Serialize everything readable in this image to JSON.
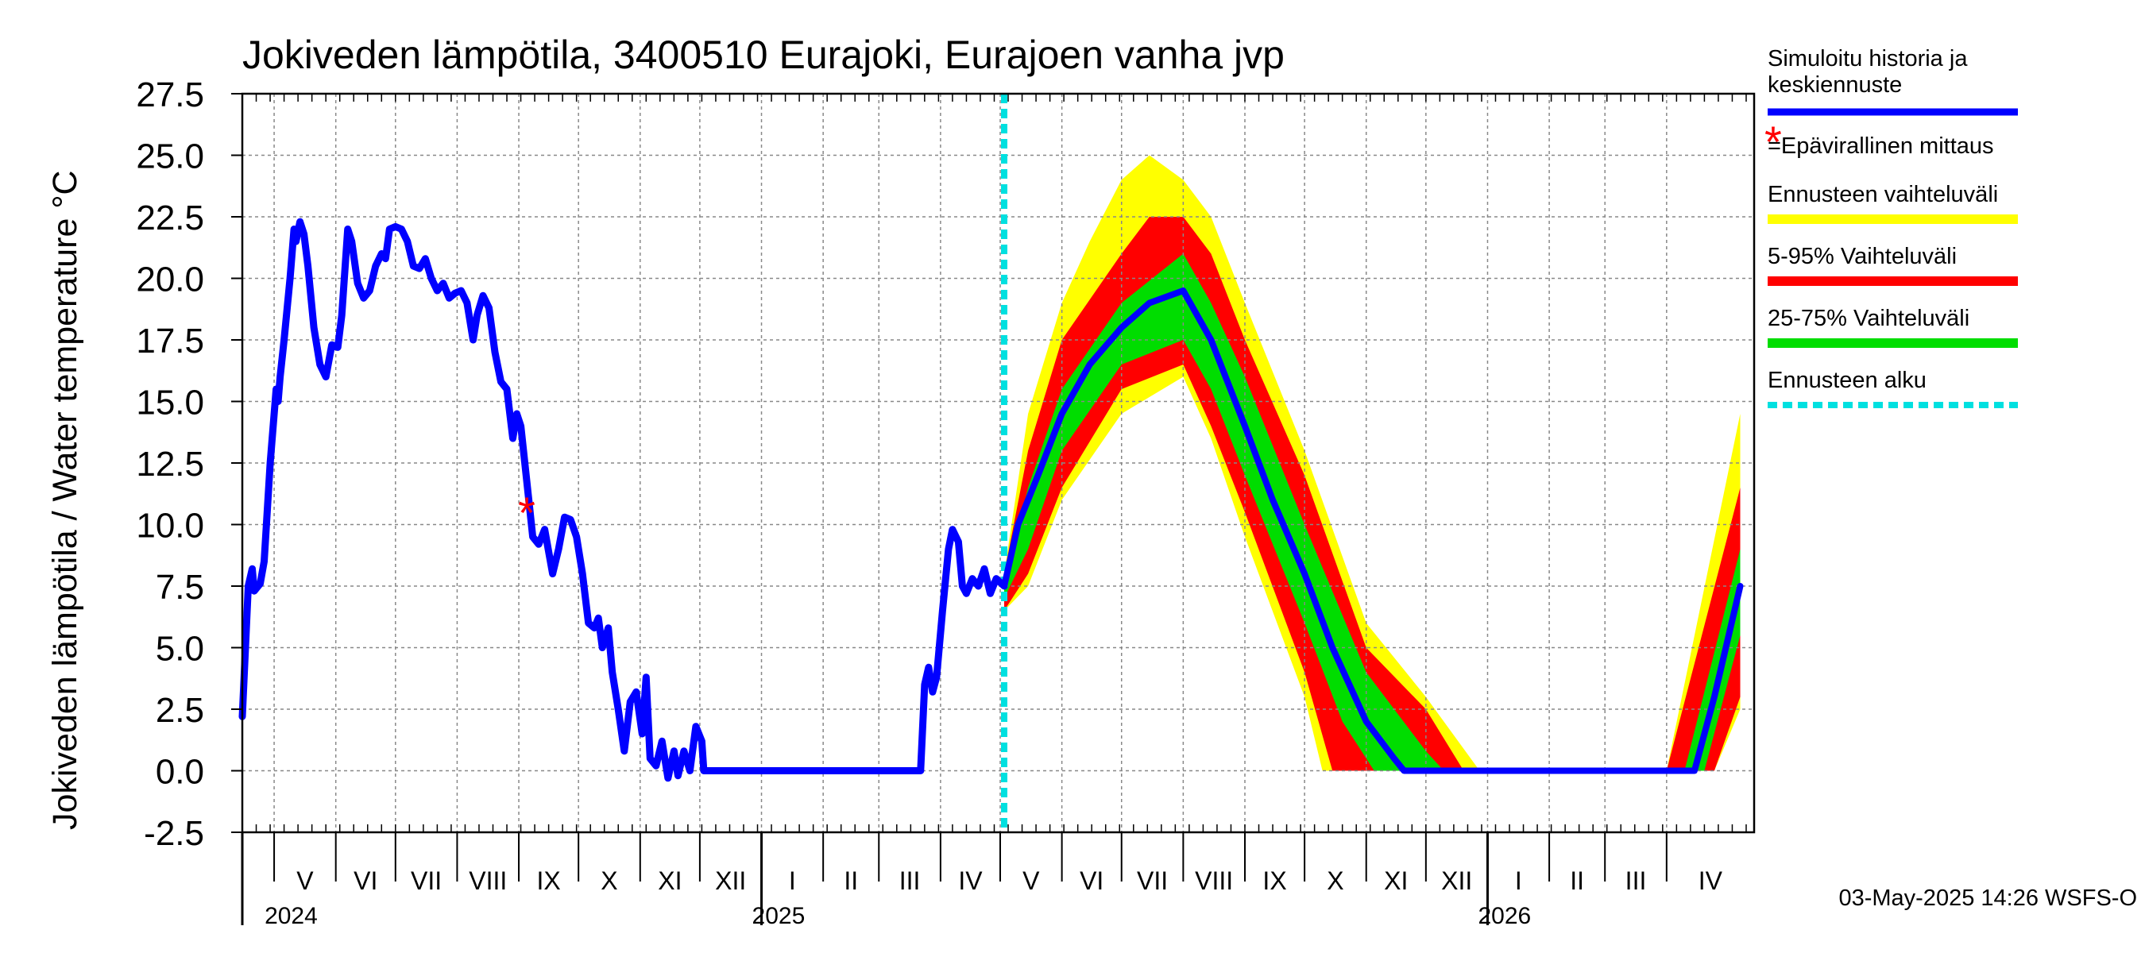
{
  "chart_data": {
    "type": "line",
    "title": "Jokiveden lämpötila, 3400510 Eurajoki, Eurajoen vanha jvp",
    "ylabel": "Jokiveden lämpötila / Water temperature   °C",
    "ylim": [
      -2.5,
      27.5
    ],
    "yticks": [
      "27.5",
      "25.0",
      "22.5",
      "20.0",
      "17.5",
      "15.0",
      "12.5",
      "10.0",
      "7.5",
      "5.0",
      "2.5",
      "0.0",
      "-2.5"
    ],
    "ytick_values": [
      27.5,
      25.0,
      22.5,
      20.0,
      17.5,
      15.0,
      12.5,
      10.0,
      7.5,
      5.0,
      2.5,
      0.0,
      -2.5
    ],
    "x_range": [
      "2024-04-15",
      "2026-05-15"
    ],
    "grid": true,
    "months": [
      {
        "label": "V",
        "start": "2024-05-01"
      },
      {
        "label": "VI",
        "start": "2024-06-01"
      },
      {
        "label": "VII",
        "start": "2024-07-01"
      },
      {
        "label": "VIII",
        "start": "2024-08-01"
      },
      {
        "label": "IX",
        "start": "2024-09-01"
      },
      {
        "label": "X",
        "start": "2024-10-01"
      },
      {
        "label": "XI",
        "start": "2024-11-01"
      },
      {
        "label": "XII",
        "start": "2024-12-01"
      },
      {
        "label": "I",
        "start": "2025-01-01"
      },
      {
        "label": "II",
        "start": "2025-02-01"
      },
      {
        "label": "III",
        "start": "2025-03-01"
      },
      {
        "label": "IV",
        "start": "2025-04-01"
      },
      {
        "label": "V",
        "start": "2025-05-01"
      },
      {
        "label": "VI",
        "start": "2025-06-01"
      },
      {
        "label": "VII",
        "start": "2025-07-01"
      },
      {
        "label": "VIII",
        "start": "2025-08-01"
      },
      {
        "label": "IX",
        "start": "2025-09-01"
      },
      {
        "label": "X",
        "start": "2025-10-01"
      },
      {
        "label": "XI",
        "start": "2025-11-01"
      },
      {
        "label": "XII",
        "start": "2025-12-01"
      },
      {
        "label": "I",
        "start": "2026-01-01"
      },
      {
        "label": "II",
        "start": "2026-02-01"
      },
      {
        "label": "III",
        "start": "2026-03-01"
      },
      {
        "label": "IV",
        "start": "2026-04-01"
      }
    ],
    "years": [
      {
        "label": "2024",
        "date": "2024-05-01"
      },
      {
        "label": "2025",
        "date": "2025-01-01"
      },
      {
        "label": "2026",
        "date": "2026-01-01"
      }
    ],
    "forecast_start": "2025-05-03",
    "history": {
      "name": "Simuloitu historia ja keskiennuste",
      "color": "#0000ff",
      "points": [
        [
          "2024-04-15",
          2.2
        ],
        [
          "2024-04-18",
          7.5
        ],
        [
          "2024-04-20",
          8.2
        ],
        [
          "2024-04-21",
          7.3
        ],
        [
          "2024-04-24",
          7.6
        ],
        [
          "2024-04-26",
          8.5
        ],
        [
          "2024-04-29",
          12.5
        ],
        [
          "2024-05-02",
          15.5
        ],
        [
          "2024-05-03",
          15.0
        ],
        [
          "2024-05-04",
          16.0
        ],
        [
          "2024-05-06",
          17.5
        ],
        [
          "2024-05-09",
          20.0
        ],
        [
          "2024-05-11",
          22.0
        ],
        [
          "2024-05-12",
          21.5
        ],
        [
          "2024-05-14",
          22.3
        ],
        [
          "2024-05-16",
          21.8
        ],
        [
          "2024-05-18",
          20.5
        ],
        [
          "2024-05-21",
          18.0
        ],
        [
          "2024-05-24",
          16.5
        ],
        [
          "2024-05-27",
          16.0
        ],
        [
          "2024-05-30",
          17.3
        ],
        [
          "2024-06-02",
          17.2
        ],
        [
          "2024-06-04",
          18.5
        ],
        [
          "2024-06-07",
          22.0
        ],
        [
          "2024-06-09",
          21.5
        ],
        [
          "2024-06-12",
          19.8
        ],
        [
          "2024-06-15",
          19.2
        ],
        [
          "2024-06-18",
          19.5
        ],
        [
          "2024-06-21",
          20.5
        ],
        [
          "2024-06-24",
          21.0
        ],
        [
          "2024-06-26",
          20.8
        ],
        [
          "2024-06-28",
          22.0
        ],
        [
          "2024-07-01",
          22.1
        ],
        [
          "2024-07-04",
          22.0
        ],
        [
          "2024-07-07",
          21.5
        ],
        [
          "2024-07-10",
          20.5
        ],
        [
          "2024-07-13",
          20.4
        ],
        [
          "2024-07-16",
          20.8
        ],
        [
          "2024-07-19",
          20.0
        ],
        [
          "2024-07-22",
          19.5
        ],
        [
          "2024-07-25",
          19.8
        ],
        [
          "2024-07-28",
          19.2
        ],
        [
          "2024-07-31",
          19.4
        ],
        [
          "2024-08-03",
          19.5
        ],
        [
          "2024-08-06",
          19.0
        ],
        [
          "2024-08-09",
          17.5
        ],
        [
          "2024-08-11",
          18.5
        ],
        [
          "2024-08-14",
          19.3
        ],
        [
          "2024-08-17",
          18.8
        ],
        [
          "2024-08-20",
          17.0
        ],
        [
          "2024-08-23",
          15.8
        ],
        [
          "2024-08-26",
          15.5
        ],
        [
          "2024-08-29",
          13.5
        ],
        [
          "2024-08-31",
          14.5
        ],
        [
          "2024-09-02",
          14.0
        ],
        [
          "2024-09-04",
          12.5
        ],
        [
          "2024-09-08",
          9.5
        ],
        [
          "2024-09-11",
          9.2
        ],
        [
          "2024-09-14",
          9.8
        ],
        [
          "2024-09-18",
          8.0
        ],
        [
          "2024-09-21",
          9.0
        ],
        [
          "2024-09-24",
          10.3
        ],
        [
          "2024-09-27",
          10.2
        ],
        [
          "2024-09-30",
          9.5
        ],
        [
          "2024-10-03",
          8.0
        ],
        [
          "2024-10-06",
          6.0
        ],
        [
          "2024-10-09",
          5.8
        ],
        [
          "2024-10-11",
          6.2
        ],
        [
          "2024-10-13",
          5.0
        ],
        [
          "2024-10-16",
          5.8
        ],
        [
          "2024-10-18",
          4.0
        ],
        [
          "2024-10-21",
          2.5
        ],
        [
          "2024-10-24",
          0.8
        ],
        [
          "2024-10-27",
          2.8
        ],
        [
          "2024-10-30",
          3.2
        ],
        [
          "2024-11-02",
          1.5
        ],
        [
          "2024-11-04",
          3.8
        ],
        [
          "2024-11-06",
          0.5
        ],
        [
          "2024-11-09",
          0.2
        ],
        [
          "2024-11-12",
          1.2
        ],
        [
          "2024-11-15",
          -0.3
        ],
        [
          "2024-11-18",
          0.8
        ],
        [
          "2024-11-20",
          -0.2
        ],
        [
          "2024-11-23",
          0.8
        ],
        [
          "2024-11-26",
          0.0
        ],
        [
          "2024-11-29",
          1.8
        ],
        [
          "2024-12-02",
          1.2
        ],
        [
          "2024-12-03",
          0.0
        ],
        [
          "2025-03-22",
          0.0
        ],
        [
          "2025-03-24",
          3.5
        ],
        [
          "2025-03-26",
          4.2
        ],
        [
          "2025-03-28",
          3.2
        ],
        [
          "2025-03-30",
          3.8
        ],
        [
          "2025-04-02",
          6.5
        ],
        [
          "2025-04-05",
          9.0
        ],
        [
          "2025-04-07",
          9.8
        ],
        [
          "2025-04-10",
          9.3
        ],
        [
          "2025-04-12",
          7.5
        ],
        [
          "2025-04-14",
          7.2
        ],
        [
          "2025-04-17",
          7.8
        ],
        [
          "2025-04-20",
          7.5
        ],
        [
          "2025-04-23",
          8.2
        ],
        [
          "2025-04-26",
          7.2
        ],
        [
          "2025-04-29",
          7.8
        ],
        [
          "2025-05-03",
          7.5
        ]
      ]
    },
    "forecast": {
      "median": [
        [
          "2025-05-03",
          7.5
        ],
        [
          "2025-05-10",
          10.0
        ],
        [
          "2025-05-20",
          12.0
        ],
        [
          "2025-06-01",
          14.5
        ],
        [
          "2025-06-15",
          16.5
        ],
        [
          "2025-07-01",
          18.0
        ],
        [
          "2025-07-15",
          19.0
        ],
        [
          "2025-08-01",
          19.5
        ],
        [
          "2025-08-15",
          17.5
        ],
        [
          "2025-09-01",
          14.0
        ],
        [
          "2025-09-15",
          11.0
        ],
        [
          "2025-10-01",
          8.0
        ],
        [
          "2025-10-15",
          5.0
        ],
        [
          "2025-11-01",
          2.0
        ],
        [
          "2025-11-15",
          0.5
        ],
        [
          "2025-11-20",
          0.0
        ],
        [
          "2026-04-15",
          0.0
        ],
        [
          "2026-04-25",
          3.0
        ],
        [
          "2026-05-08",
          7.5
        ]
      ],
      "p25": [
        [
          "2025-05-03",
          7.0
        ],
        [
          "2025-05-15",
          9.0
        ],
        [
          "2025-06-01",
          13.0
        ],
        [
          "2025-07-01",
          16.5
        ],
        [
          "2025-08-01",
          17.5
        ],
        [
          "2025-08-15",
          15.5
        ],
        [
          "2025-09-01",
          12.0
        ],
        [
          "2025-10-01",
          6.0
        ],
        [
          "2025-10-20",
          2.0
        ],
        [
          "2025-11-05",
          0.0
        ],
        [
          "2026-04-20",
          0.0
        ],
        [
          "2026-05-08",
          5.5
        ]
      ],
      "p75": [
        [
          "2025-05-03",
          7.5
        ],
        [
          "2025-05-15",
          11.5
        ],
        [
          "2025-06-01",
          15.5
        ],
        [
          "2025-07-01",
          19.0
        ],
        [
          "2025-08-01",
          21.0
        ],
        [
          "2025-08-15",
          19.0
        ],
        [
          "2025-09-01",
          16.0
        ],
        [
          "2025-10-01",
          10.0
        ],
        [
          "2025-11-01",
          4.0
        ],
        [
          "2025-12-01",
          0.8
        ],
        [
          "2025-12-10",
          0.0
        ],
        [
          "2026-04-10",
          0.0
        ],
        [
          "2026-05-08",
          9.0
        ]
      ],
      "p5": [
        [
          "2025-05-03",
          6.5
        ],
        [
          "2025-05-15",
          8.0
        ],
        [
          "2025-06-01",
          11.5
        ],
        [
          "2025-07-01",
          15.5
        ],
        [
          "2025-08-01",
          16.5
        ],
        [
          "2025-08-15",
          14.0
        ],
        [
          "2025-09-01",
          10.5
        ],
        [
          "2025-10-01",
          4.0
        ],
        [
          "2025-10-15",
          0.0
        ],
        [
          "2026-04-25",
          0.0
        ],
        [
          "2026-05-08",
          3.0
        ]
      ],
      "p95": [
        [
          "2025-05-03",
          8.0
        ],
        [
          "2025-05-15",
          13.0
        ],
        [
          "2025-06-01",
          17.5
        ],
        [
          "2025-07-01",
          21.0
        ],
        [
          "2025-07-15",
          22.5
        ],
        [
          "2025-08-01",
          22.5
        ],
        [
          "2025-08-15",
          21.0
        ],
        [
          "2025-09-01",
          17.5
        ],
        [
          "2025-10-01",
          12.0
        ],
        [
          "2025-11-01",
          5.0
        ],
        [
          "2025-12-01",
          2.5
        ],
        [
          "2025-12-20",
          0.0
        ],
        [
          "2026-04-01",
          0.0
        ],
        [
          "2026-05-08",
          11.5
        ]
      ],
      "min": [
        [
          "2025-05-03",
          6.5
        ],
        [
          "2025-05-15",
          7.5
        ],
        [
          "2025-06-01",
          11.0
        ],
        [
          "2025-07-01",
          14.5
        ],
        [
          "2025-08-01",
          16.0
        ],
        [
          "2025-08-15",
          13.5
        ],
        [
          "2025-09-01",
          9.5
        ],
        [
          "2025-10-01",
          3.0
        ],
        [
          "2025-10-10",
          0.0
        ],
        [
          "2026-04-25",
          0.0
        ],
        [
          "2026-05-08",
          2.5
        ]
      ],
      "max": [
        [
          "2025-05-03",
          8.0
        ],
        [
          "2025-05-15",
          14.5
        ],
        [
          "2025-06-01",
          19.0
        ],
        [
          "2025-06-15",
          21.5
        ],
        [
          "2025-07-01",
          24.0
        ],
        [
          "2025-07-15",
          25.0
        ],
        [
          "2025-08-01",
          24.0
        ],
        [
          "2025-08-15",
          22.5
        ],
        [
          "2025-09-01",
          19.0
        ],
        [
          "2025-10-01",
          13.0
        ],
        [
          "2025-11-01",
          6.0
        ],
        [
          "2025-12-01",
          3.0
        ],
        [
          "2025-12-28",
          0.0
        ],
        [
          "2026-04-01",
          0.0
        ],
        [
          "2026-05-08",
          14.5
        ]
      ]
    },
    "unofficial_measurement": {
      "date": "2024-09-05",
      "value": 10.5
    },
    "legend": [
      {
        "label": "Simuloitu historia ja keskiennuste",
        "color": "#0000ff",
        "style": "line"
      },
      {
        "label": "=Epävirallinen mittaus",
        "color": "#ff0000",
        "style": "star"
      },
      {
        "label": "Ennusteen vaihteluväli",
        "color": "#ffff00",
        "style": "band"
      },
      {
        "label": "5-95% Vaihteluväli",
        "color": "#ff0000",
        "style": "band"
      },
      {
        "label": "25-75% Vaihteluväli",
        "color": "#00dd00",
        "style": "band"
      },
      {
        "label": "Ennusteen alku",
        "color": "#00e0e0",
        "style": "dashed"
      }
    ],
    "legend_position": "right"
  },
  "footer": {
    "timestamp": "03-May-2025 14:26 WSFS-O"
  }
}
